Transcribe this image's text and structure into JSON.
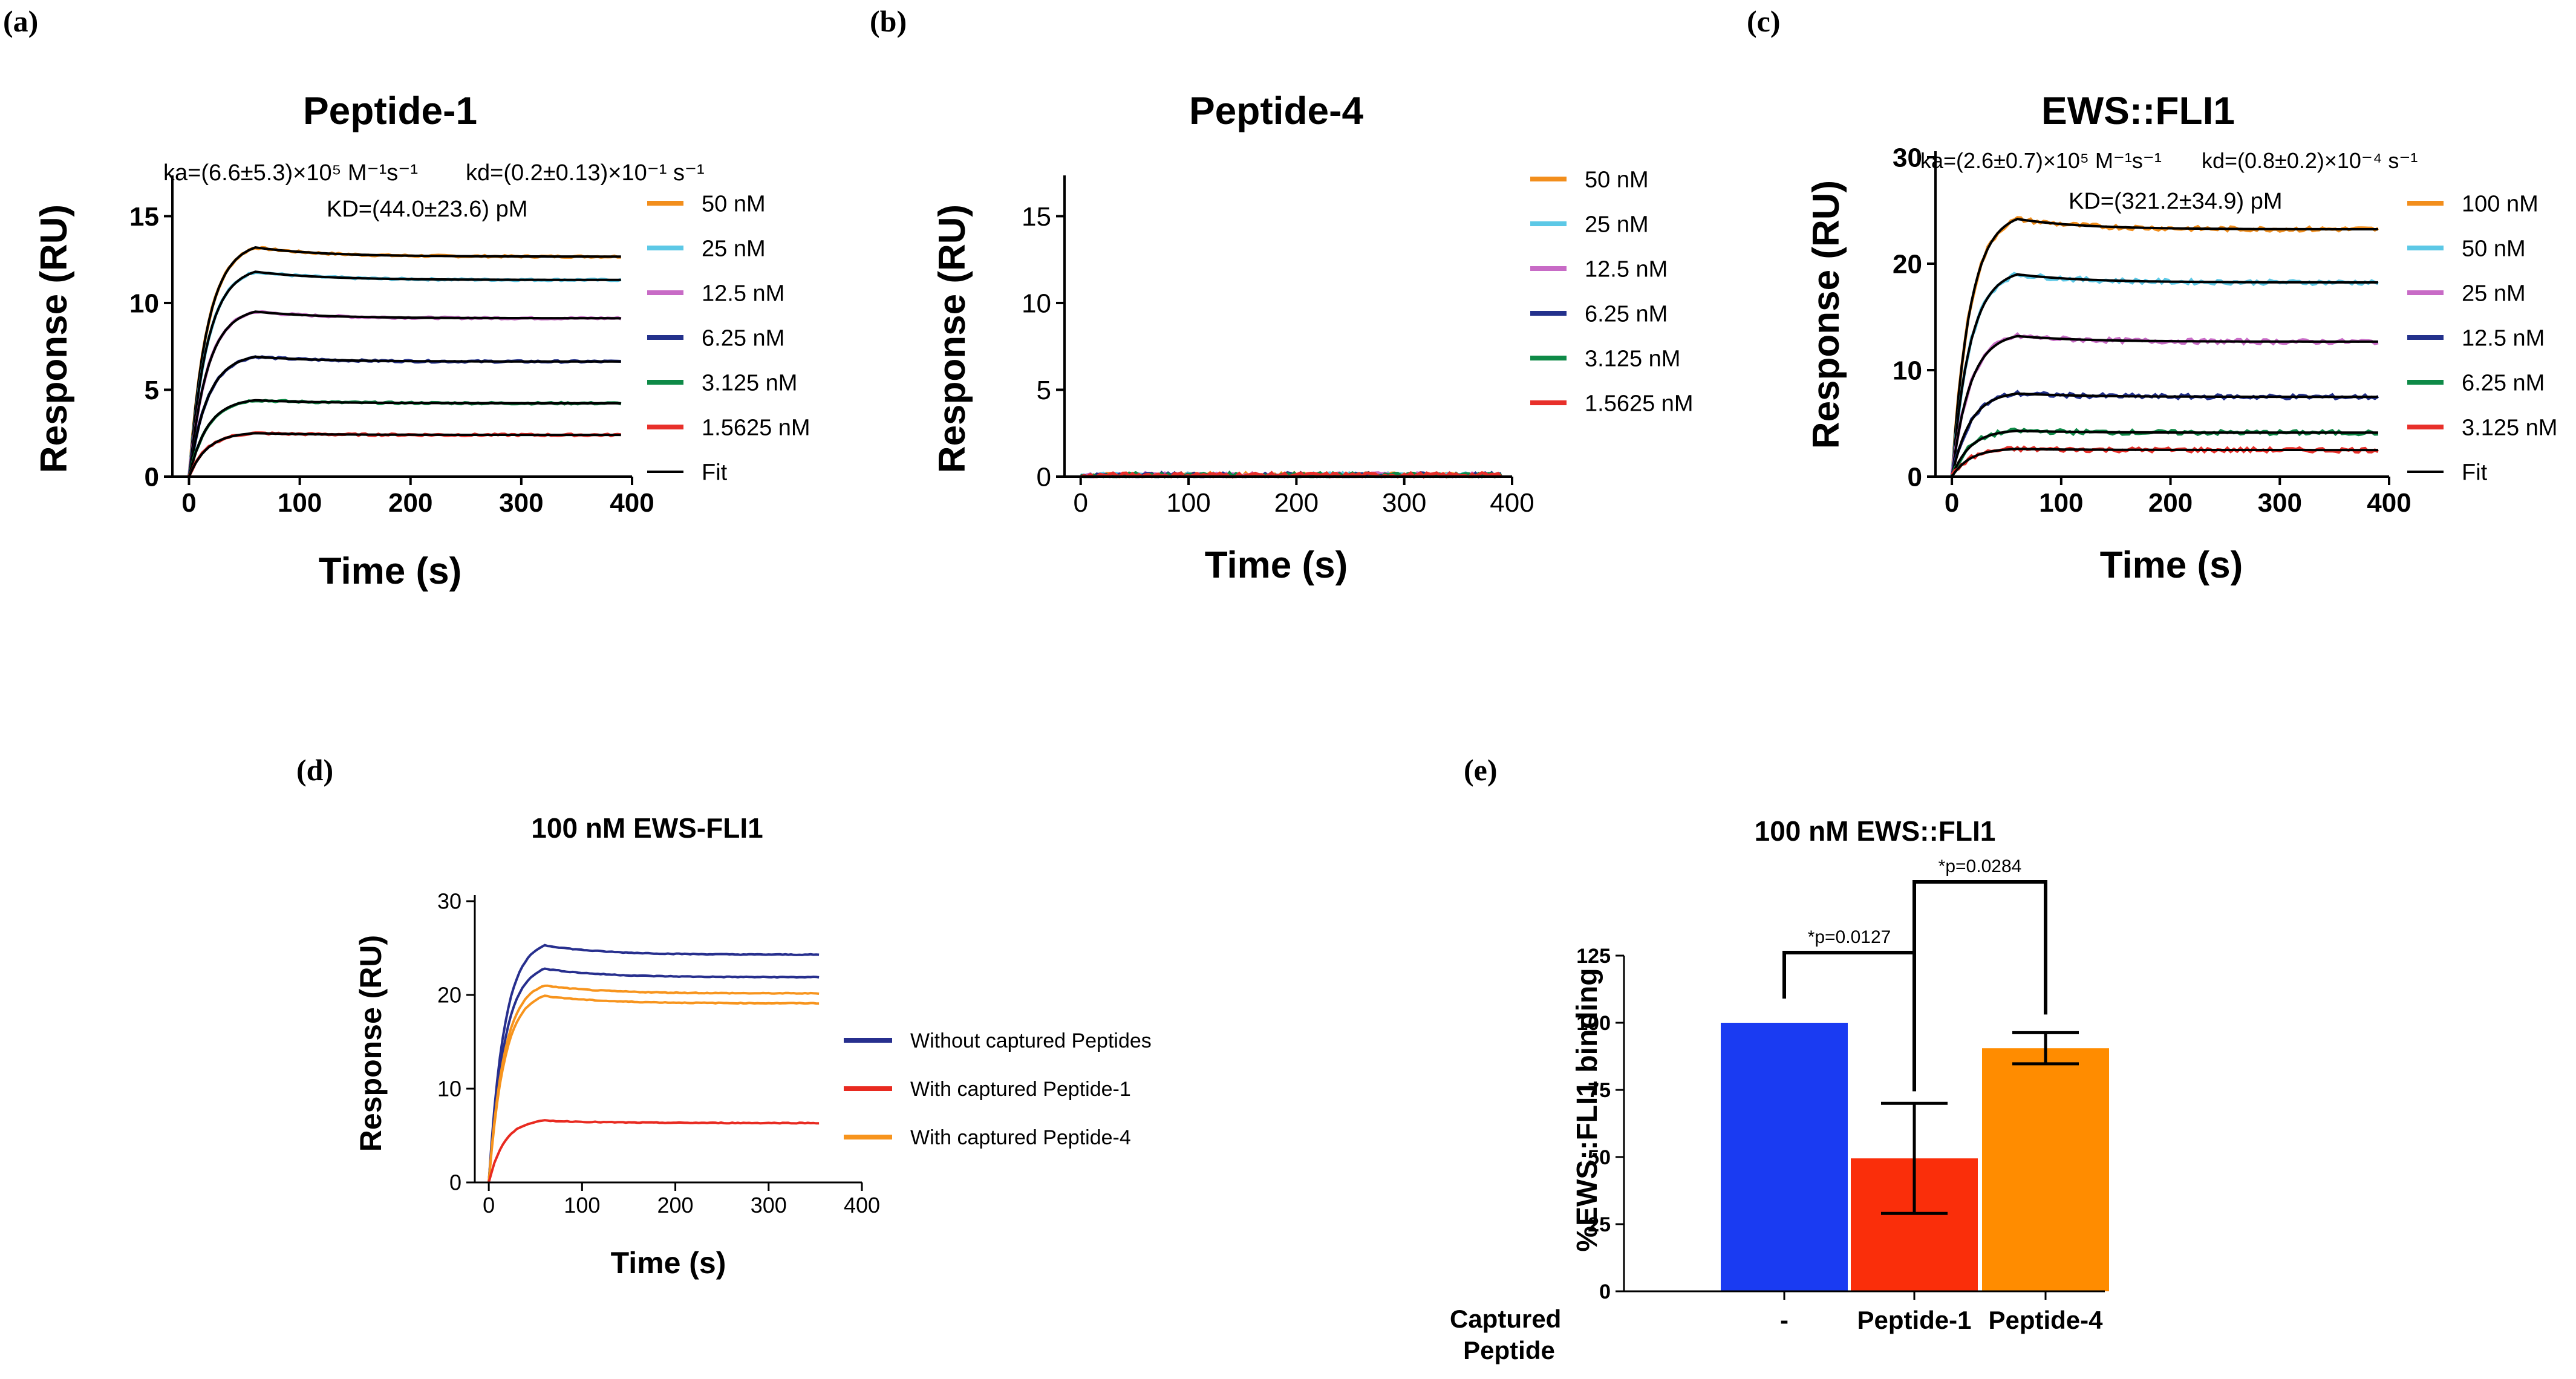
{
  "colors": {
    "orange": "#F28E1C",
    "cyan": "#5CC8E6",
    "magenta": "#C86BC6",
    "navy": "#23318C",
    "green": "#0E8A47",
    "red": "#E8302A",
    "fit": "#000000",
    "bar_blue": "#1A3BF2",
    "bar_red": "#FA2E0A",
    "bar_orange": "#FF8C00",
    "d_navy": "#272F8E",
    "d_red": "#E82A20",
    "d_orange": "#F7941D"
  },
  "chart_data": [
    {
      "panel": "(a)",
      "type": "line",
      "title": "Peptide-1",
      "xlabel": "Time (s)",
      "ylabel": "Response (RU)",
      "xlim": [
        -15,
        400
      ],
      "ylim": [
        0,
        17
      ],
      "xticks": [
        "0",
        "100",
        "200",
        "300",
        "400"
      ],
      "yticks": [
        "0",
        "5",
        "10",
        "15"
      ],
      "association_end_s": 60,
      "annotations": {
        "ka": "ka=(6.6±5.3)×10⁵ M⁻¹s⁻¹",
        "kd": "kd=(0.2±0.13)×10⁻¹ s⁻¹",
        "KD": "KD=(44.0±23.6) pM"
      },
      "legend": [
        "50 nM",
        "25 nM",
        "12.5 nM",
        "6.25 nM",
        "3.125 nM",
        "1.5625 nM",
        "Fit"
      ],
      "series": [
        {
          "name": "50 nM",
          "color_key": "orange",
          "plateau": 13.2
        },
        {
          "name": "25 nM",
          "color_key": "cyan",
          "plateau": 11.8
        },
        {
          "name": "12.5 nM",
          "color_key": "magenta",
          "plateau": 9.5
        },
        {
          "name": "6.25 nM",
          "color_key": "navy",
          "plateau": 6.9
        },
        {
          "name": "3.125 nM",
          "color_key": "green",
          "plateau": 4.4
        },
        {
          "name": "1.5625 nM",
          "color_key": "red",
          "plateau": 2.5
        }
      ]
    },
    {
      "panel": "(b)",
      "type": "line",
      "title": "Peptide-4",
      "xlabel": "Time (s)",
      "ylabel": "Response (RU)",
      "xlim": [
        -15,
        400
      ],
      "ylim": [
        0,
        17
      ],
      "xticks": [
        "0",
        "100",
        "200",
        "300",
        "400"
      ],
      "yticks": [
        "0",
        "5",
        "10",
        "15"
      ],
      "association_end_s": 60,
      "legend": [
        "50 nM",
        "25 nM",
        "12.5 nM",
        "6.25 nM",
        "3.125 nM",
        "1.5625 nM"
      ],
      "series": [
        {
          "name": "50 nM",
          "color_key": "orange",
          "plateau": 0.1
        },
        {
          "name": "25 nM",
          "color_key": "cyan",
          "plateau": 0.1
        },
        {
          "name": "12.5 nM",
          "color_key": "magenta",
          "plateau": 0.1
        },
        {
          "name": "6.25 nM",
          "color_key": "navy",
          "plateau": 0.1
        },
        {
          "name": "3.125 nM",
          "color_key": "green",
          "plateau": 0.1
        },
        {
          "name": "1.5625 nM",
          "color_key": "red",
          "plateau": 0.1
        }
      ]
    },
    {
      "panel": "(c)",
      "type": "line",
      "title": "EWS::FLI1",
      "xlabel": "Time (s)",
      "ylabel": "Response (RU)",
      "xlim": [
        -15,
        400
      ],
      "ylim": [
        0,
        30
      ],
      "xticks": [
        "0",
        "100",
        "200",
        "300",
        "400"
      ],
      "yticks": [
        "0",
        "10",
        "20",
        "30"
      ],
      "association_end_s": 60,
      "annotations": {
        "ka": "ka=(2.6±0.7)×10⁵ M⁻¹s⁻¹",
        "kd": "kd=(0.8±0.2)×10⁻⁴ s⁻¹",
        "KD": "KD=(321.2±34.9) pM"
      },
      "legend": [
        "100 nM",
        "50 nM",
        "25 nM",
        "12.5 nM",
        "6.25 nM",
        "3.125 nM",
        "Fit"
      ],
      "series": [
        {
          "name": "100 nM",
          "color_key": "orange",
          "plateau": 24.2
        },
        {
          "name": "50 nM",
          "color_key": "cyan",
          "plateau": 19.0
        },
        {
          "name": "25 nM",
          "color_key": "magenta",
          "plateau": 13.2
        },
        {
          "name": "12.5 nM",
          "color_key": "navy",
          "plateau": 7.8
        },
        {
          "name": "6.25 nM",
          "color_key": "green",
          "plateau": 4.3
        },
        {
          "name": "3.125 nM",
          "color_key": "red",
          "plateau": 2.6
        }
      ]
    },
    {
      "panel": "(d)",
      "type": "line",
      "title": "100 nM EWS-FLI1",
      "xlabel": "Time (s)",
      "ylabel": "Response (RU)",
      "xlim": [
        -15,
        400
      ],
      "ylim": [
        0,
        30
      ],
      "xticks": [
        "0",
        "100",
        "200",
        "300",
        "400"
      ],
      "yticks": [
        "0",
        "10",
        "20",
        "30"
      ],
      "association_end_s": 60,
      "legend": [
        "Without captured Peptides",
        "With captured Peptide-1",
        "With captured Peptide-4"
      ],
      "series": [
        {
          "name": "Without captured Peptides",
          "color_key": "d_navy",
          "plateau": 25.3
        },
        {
          "name": "Without captured Peptides",
          "color_key": "d_navy",
          "plateau": 22.8
        },
        {
          "name": "With captured Peptide-4",
          "color_key": "d_orange",
          "plateau": 21.0
        },
        {
          "name": "With captured Peptide-4",
          "color_key": "d_orange",
          "plateau": 19.9
        },
        {
          "name": "With captured Peptide-1",
          "color_key": "d_red",
          "plateau": 6.6
        }
      ]
    },
    {
      "panel": "(e)",
      "type": "bar",
      "title": "100 nM EWS::FLI1",
      "xlabel": "Captured Peptide",
      "ylabel": "%EWS::FLI1 binding",
      "ylim": [
        0,
        125
      ],
      "yticks": [
        "0",
        "25",
        "50",
        "75",
        "100",
        "125"
      ],
      "categories": [
        "-",
        "Peptide-1",
        "Peptide-4"
      ],
      "values": [
        100,
        49.5,
        90.5
      ],
      "errors": [
        0,
        20.5,
        5.8
      ],
      "color_keys": [
        "bar_blue",
        "bar_red",
        "bar_orange"
      ],
      "significance": [
        {
          "from": 0,
          "to": 1,
          "label": "*p=0.0127"
        },
        {
          "from": 1,
          "to": 2,
          "label": "*p=0.0284"
        }
      ]
    }
  ]
}
